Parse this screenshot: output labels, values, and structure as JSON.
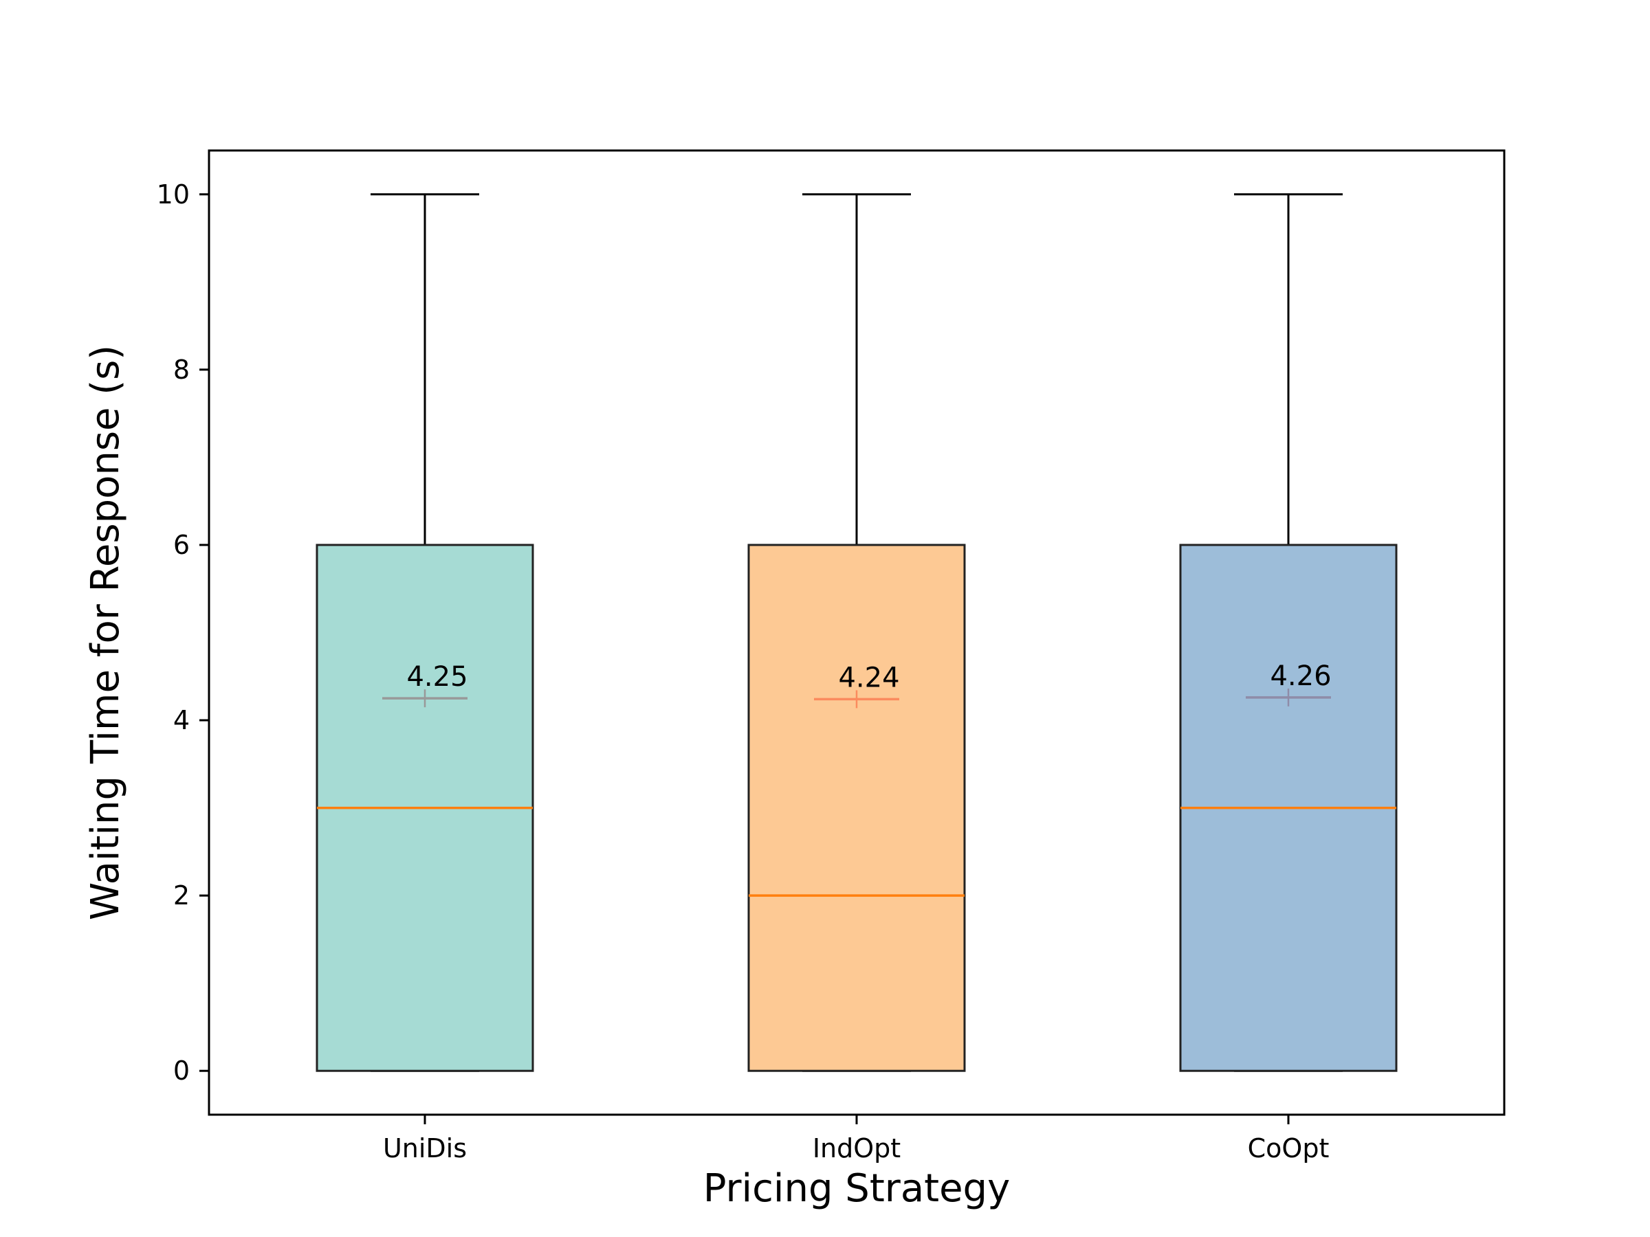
{
  "chart_data": {
    "type": "box",
    "xlabel": "Pricing Strategy",
    "ylabel": "Waiting Time for Response (s)",
    "ylim": [
      -0.5,
      10.5
    ],
    "yticks": [
      0,
      2,
      4,
      6,
      8,
      10
    ],
    "ytick_labels": [
      "0",
      "2",
      "4",
      "6",
      "8",
      "10"
    ],
    "grid": false,
    "legend": "none",
    "median_color": "#ff7f0e",
    "series": [
      {
        "category": "UniDis",
        "whisker_low": 0,
        "q1": 0,
        "median": 3,
        "q3": 6,
        "whisker_high": 10,
        "mean": 4.25,
        "mean_label": "4.25",
        "box_color": "#a6dbd4",
        "mean_line_color": "#999999"
      },
      {
        "category": "IndOpt",
        "whisker_low": 0,
        "q1": 0,
        "median": 2,
        "q3": 6,
        "whisker_high": 10,
        "mean": 4.24,
        "mean_label": "4.24",
        "box_color": "#fdc994",
        "mean_line_color": "#fb8b5e"
      },
      {
        "category": "CoOpt",
        "whisker_low": 0,
        "q1": 0,
        "median": 3,
        "q3": 6,
        "whisker_high": 10,
        "mean": 4.26,
        "mean_label": "4.26",
        "box_color": "#9dbdd9",
        "mean_line_color": "#8f8ca8"
      }
    ]
  }
}
